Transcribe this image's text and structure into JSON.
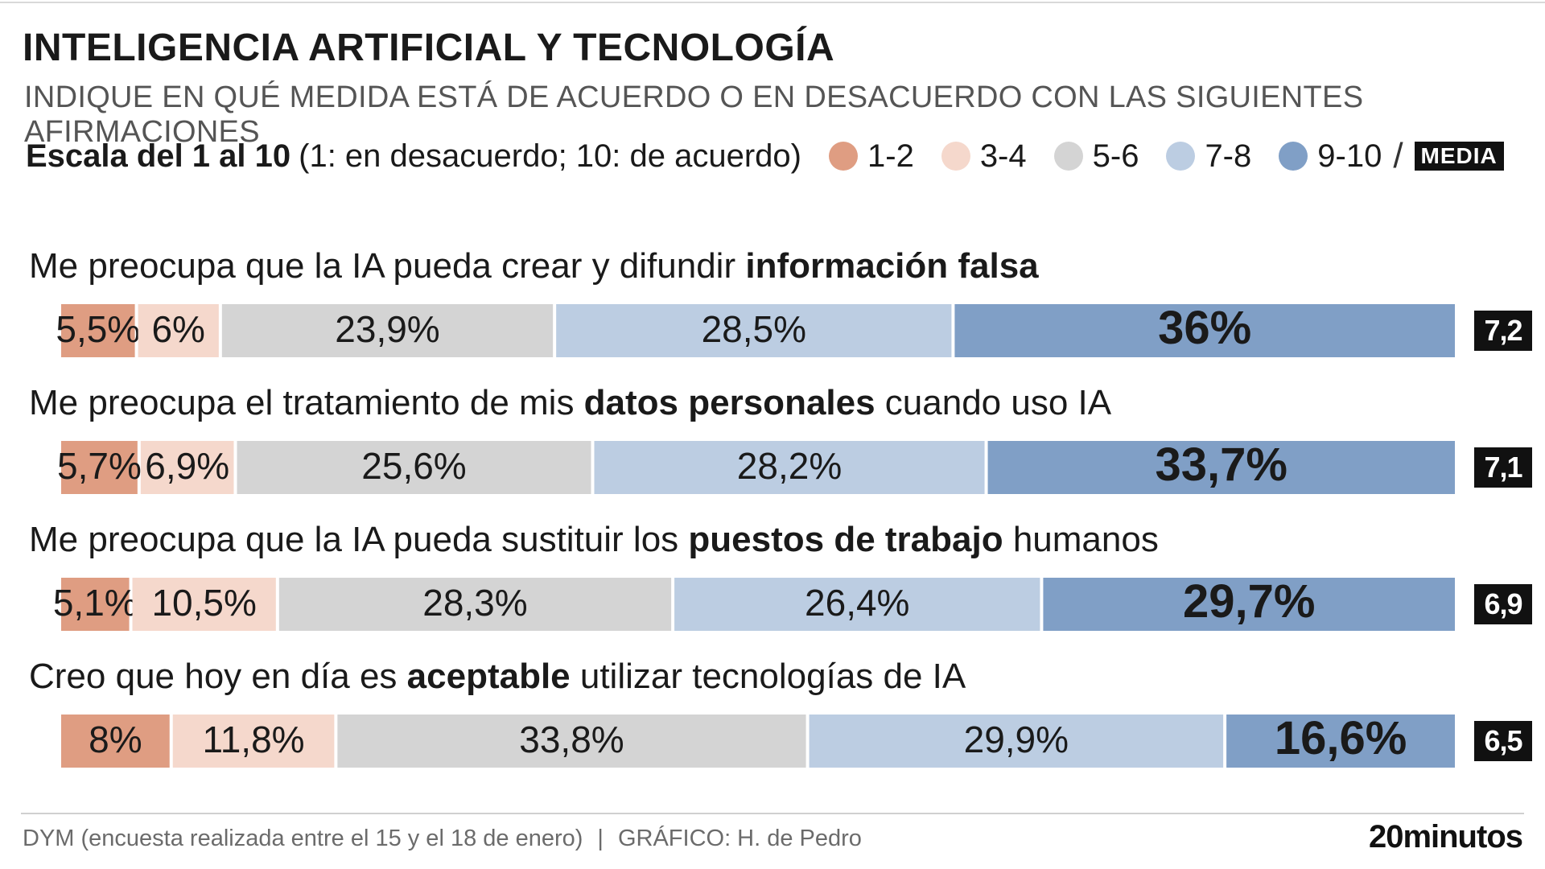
{
  "header": {
    "title": "INTELIGENCIA ARTIFICIAL Y TECNOLOGÍA",
    "subtitle": "INDIQUE EN QUÉ MEDIDA ESTÁ DE ACUERDO O EN DESACUERDO CON LAS SIGUIENTES AFIRMACIONES"
  },
  "legend": {
    "scale_bold": "Escala del 1 al 10",
    "scale_rest": "(1: en desacuerdo; 10: de acuerdo)",
    "items": [
      {
        "label": "1-2",
        "color": "#df9d82"
      },
      {
        "label": "3-4",
        "color": "#f5d8cc"
      },
      {
        "label": "5-6",
        "color": "#d4d4d4"
      },
      {
        "label": "7-8",
        "color": "#bccde2"
      },
      {
        "label": "9-10",
        "color": "#809fc6"
      }
    ],
    "slash": "/",
    "media_label": "MEDIA"
  },
  "statements": [
    {
      "pre": "Me preocupa que la IA pueda crear y difundir ",
      "bold": "información falsa",
      "post": ""
    },
    {
      "pre": "Me preocupa el tratamiento de mis ",
      "bold": "datos personales",
      "post": " cuando uso IA"
    },
    {
      "pre": "Me preocupa que la IA pueda sustituir los ",
      "bold": "puestos de trabajo",
      "post": " humanos"
    },
    {
      "pre": "Creo que hoy en día es ",
      "bold": "aceptable",
      "post": " utilizar tecnologías de IA"
    }
  ],
  "chart_data": {
    "type": "bar",
    "orientation": "horizontal-stacked-100",
    "series_names": [
      "1-2",
      "3-4",
      "5-6",
      "7-8",
      "9-10"
    ],
    "series_colors": [
      "#df9d82",
      "#f5d8cc",
      "#d4d4d4",
      "#bccde2",
      "#809fc6"
    ],
    "rows": [
      {
        "values": [
          5.5,
          6,
          23.9,
          28.5,
          36
        ],
        "labels": [
          "5,5%",
          "6%",
          "23,9%",
          "28,5%",
          "36%"
        ],
        "mean": "7,2"
      },
      {
        "values": [
          5.7,
          6.9,
          25.6,
          28.2,
          33.7
        ],
        "labels": [
          "5,7%",
          "6,9%",
          "25,6%",
          "28,2%",
          "33,7%"
        ],
        "mean": "7,1"
      },
      {
        "values": [
          5.1,
          10.5,
          28.3,
          26.4,
          29.7
        ],
        "labels": [
          "5,1%",
          "10,5%",
          "28,3%",
          "26,4%",
          "29,7%"
        ],
        "mean": "6,9"
      },
      {
        "values": [
          8,
          11.8,
          33.8,
          29.9,
          16.6
        ],
        "labels": [
          "8%",
          "11,8%",
          "33,8%",
          "29,9%",
          "16,6%"
        ],
        "mean": "6,5"
      }
    ]
  },
  "footer": {
    "source": "DYM (encuesta realizada entre el 15 y el 18 de enero)",
    "separator": "|",
    "credit": "GRÁFICO: H. de Pedro",
    "logo": "20minutos"
  }
}
